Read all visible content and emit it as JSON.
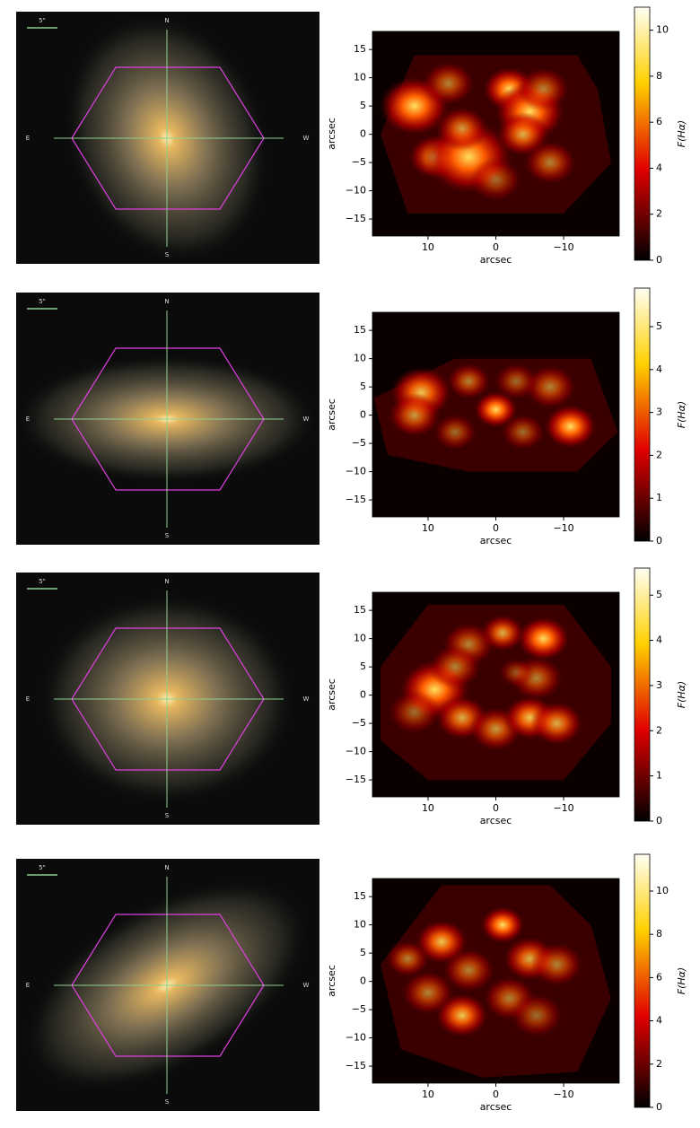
{
  "images": [
    {
      "scale": "5\"",
      "north": "N",
      "south": "S",
      "east": "E",
      "west": "W"
    },
    {
      "scale": "5\"",
      "north": "N",
      "south": "S",
      "east": "E",
      "west": "W"
    },
    {
      "scale": "5\"",
      "north": "N",
      "south": "S",
      "east": "E",
      "west": "W"
    },
    {
      "scale": "5\"",
      "north": "N",
      "south": "S",
      "east": "E",
      "west": "W"
    }
  ],
  "chart_data": [
    {
      "type": "heatmap",
      "xlabel": "arcsec",
      "ylabel": "arcsec",
      "xlim": [
        18.2,
        -18.2
      ],
      "ylim": [
        -18,
        18.2
      ],
      "xticks": [
        10,
        0,
        {
          "value": -10,
          "label": "−10"
        }
      ],
      "yticks": [
        15,
        10,
        5,
        0,
        {
          "value": -5,
          "label": "−5"
        },
        {
          "value": -10,
          "label": "−10"
        },
        {
          "value": -15,
          "label": "−15"
        }
      ],
      "colorbar": {
        "label": "F(Hα)",
        "lim": [
          0,
          11
        ],
        "ticks": [
          0,
          2,
          4,
          6,
          8,
          10
        ]
      }
    },
    {
      "type": "heatmap",
      "xlabel": "arcsec",
      "ylabel": "arcsec",
      "xlim": [
        18.2,
        -18.2
      ],
      "ylim": [
        -18,
        18.2
      ],
      "xticks": [
        10,
        0,
        {
          "value": -10,
          "label": "−10"
        }
      ],
      "yticks": [
        15,
        10,
        5,
        0,
        {
          "value": -5,
          "label": "−5"
        },
        {
          "value": -10,
          "label": "−10"
        },
        {
          "value": -15,
          "label": "−15"
        }
      ],
      "colorbar": {
        "label": "F(Hα)",
        "lim": [
          0,
          5.9
        ],
        "ticks": [
          0,
          1,
          2,
          3,
          4,
          5
        ]
      }
    },
    {
      "type": "heatmap",
      "xlabel": "arcsec",
      "ylabel": "arcsec",
      "xlim": [
        18.2,
        -18.2
      ],
      "ylim": [
        -18,
        18.2
      ],
      "xticks": [
        10,
        0,
        {
          "value": -10,
          "label": "−10"
        }
      ],
      "yticks": [
        15,
        10,
        5,
        0,
        {
          "value": -5,
          "label": "−5"
        },
        {
          "value": -10,
          "label": "−10"
        },
        {
          "value": -15,
          "label": "−15"
        }
      ],
      "colorbar": {
        "label": "F(Hα)",
        "lim": [
          0,
          5.6
        ],
        "ticks": [
          0,
          1,
          2,
          3,
          4,
          5
        ]
      }
    },
    {
      "type": "heatmap",
      "xlabel": "arcsec",
      "ylabel": "arcsec",
      "xlim": [
        18.2,
        -18.2
      ],
      "ylim": [
        -18,
        18.2
      ],
      "xticks": [
        10,
        0,
        {
          "value": -10,
          "label": "−10"
        }
      ],
      "yticks": [
        15,
        10,
        5,
        0,
        {
          "value": -5,
          "label": "−5"
        },
        {
          "value": -10,
          "label": "−10"
        },
        {
          "value": -15,
          "label": "−15"
        }
      ],
      "colorbar": {
        "label": "F(Hα)",
        "lim": [
          0,
          11.7
        ],
        "ticks": [
          0,
          2,
          4,
          6,
          8,
          10
        ]
      }
    }
  ]
}
